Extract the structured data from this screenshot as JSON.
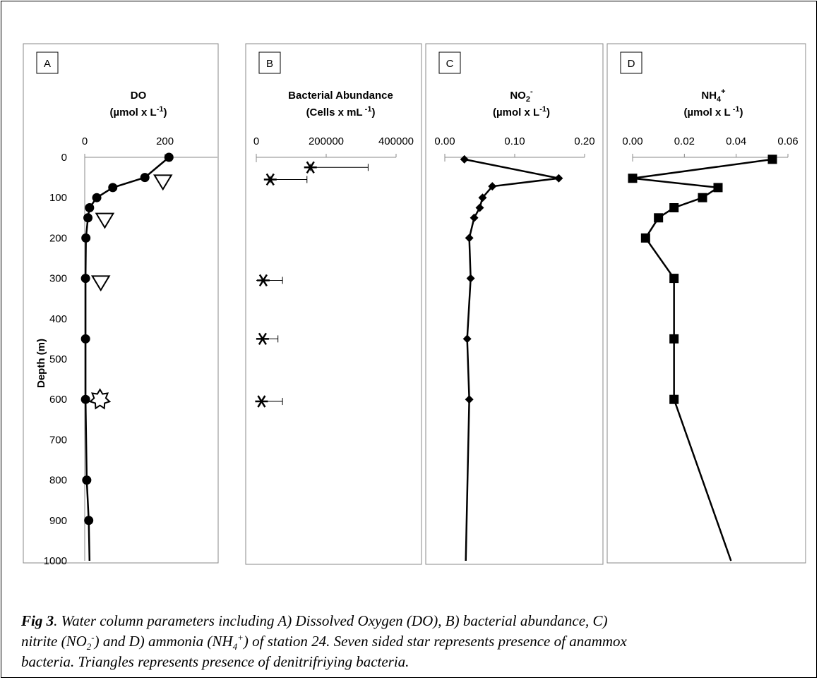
{
  "chart_data": [
    {
      "panel_label": "A",
      "type": "line",
      "title": "DO",
      "unit_title": "(µmol x L",
      "unit_sup": "-1",
      "unit_close": ")",
      "ylabel": "Depth (m)",
      "yticks": [
        "0",
        "100",
        "200",
        "300",
        "400",
        "500",
        "600",
        "700",
        "800",
        "900",
        "1000"
      ],
      "ylim": [
        0,
        1000
      ],
      "xticks": [
        "0",
        "200"
      ],
      "xlim": [
        0,
        250
      ],
      "series": [
        {
          "marker": "circle",
          "points": [
            [
              210,
              0
            ],
            [
              150,
              50
            ],
            [
              70,
              75
            ],
            [
              30,
              100
            ],
            [
              12,
              125
            ],
            [
              8,
              150
            ],
            [
              3,
              200
            ],
            [
              2,
              300
            ],
            [
              2,
              450
            ],
            [
              2,
              600
            ],
            [
              5,
              800
            ],
            [
              10,
              900
            ],
            [
              12,
              1000
            ]
          ]
        }
      ],
      "denitrifier_triangles": [
        [
          195,
          60
        ],
        [
          50,
          155
        ],
        [
          40,
          310
        ]
      ],
      "anammox_star": [
        [
          38,
          600
        ]
      ]
    },
    {
      "panel_label": "B",
      "type": "scatter",
      "title": "Bacterial Abundance",
      "unit_title": "(Cells x mL",
      "unit_sup": " -1",
      "unit_close": ")",
      "xticks": [
        "0",
        "200000",
        "400000"
      ],
      "xlim": [
        0,
        400000
      ],
      "ylim": [
        0,
        1000
      ],
      "series": [
        {
          "marker": "asterisk",
          "points": [
            {
              "depth": 25,
              "value": 155000,
              "err_low": 0,
              "err_high": 320000
            },
            {
              "depth": 55,
              "value": 40000,
              "err_low": 0,
              "err_high": 145000
            },
            {
              "depth": 305,
              "value": 20000,
              "err_low": 20000,
              "err_high": 75000
            },
            {
              "depth": 450,
              "value": 18000,
              "err_low": 18000,
              "err_high": 62000
            },
            {
              "depth": 605,
              "value": 15000,
              "err_low": 15000,
              "err_high": 75000
            }
          ]
        }
      ]
    },
    {
      "panel_label": "C",
      "type": "line",
      "title": "NO",
      "title_sub": "2",
      "title_sup": "-",
      "unit_title": "(µmol x L",
      "unit_sup": "-1",
      "unit_close": ")",
      "xticks": [
        "0.00",
        "0.10",
        "0.20"
      ],
      "xlim": [
        0,
        0.2
      ],
      "ylim": [
        0,
        1000
      ],
      "series": [
        {
          "marker": "diamond",
          "points": [
            [
              0.028,
              5
            ],
            [
              0.163,
              52
            ],
            [
              0.068,
              72
            ],
            [
              0.054,
              100
            ],
            [
              0.05,
              125
            ],
            [
              0.042,
              150
            ],
            [
              0.035,
              200
            ],
            [
              0.037,
              300
            ],
            [
              0.032,
              450
            ],
            [
              0.035,
              600
            ],
            [
              0.03,
              1000
            ]
          ]
        }
      ]
    },
    {
      "panel_label": "D",
      "type": "line",
      "title": "NH",
      "title_sub": "4",
      "title_sup": "+",
      "unit_title": "(µmol x L",
      "unit_sup": " -1",
      "unit_close": ")",
      "xticks": [
        "0.00",
        "0.02",
        "0.04",
        "0.06"
      ],
      "xlim": [
        0,
        0.06
      ],
      "ylim": [
        0,
        1000
      ],
      "series": [
        {
          "marker": "square",
          "points": [
            [
              0.054,
              5
            ],
            [
              0.0,
              52
            ],
            [
              0.033,
              75
            ],
            [
              0.027,
              100
            ],
            [
              0.016,
              125
            ],
            [
              0.01,
              150
            ],
            [
              0.005,
              200
            ],
            [
              0.016,
              300
            ],
            [
              0.016,
              450
            ],
            [
              0.016,
              600
            ],
            [
              0.038,
              1000
            ]
          ]
        }
      ]
    }
  ],
  "caption": {
    "fig_label": "Fig 3",
    "text_1": ". Water column parameters  including A) Dissolved Oxygen (DO), B) bacterial abundance, C)",
    "text_2a": "nitrite (NO",
    "text_2a_sub": "2",
    "text_2a_sup": "-",
    "text_2b": ") and D) ammonia (NH",
    "text_2b_sub": "4",
    "text_2b_sup": "+",
    "text_2c": ") of station 24. Seven sided star represents presence of anammox",
    "text_3": "bacteria. Triangles represents presence of denitrifriying bacteria."
  }
}
